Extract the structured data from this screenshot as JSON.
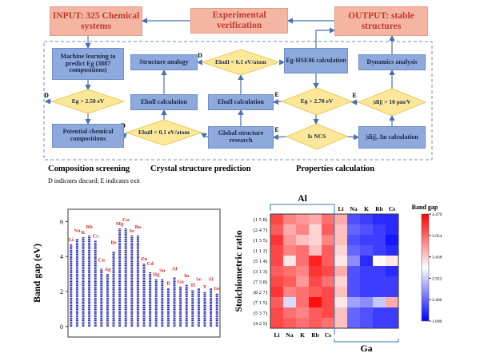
{
  "flowchart": {
    "nodes": [
      {
        "label": "INPUT: 325 Chemical systems"
      },
      {
        "label": "Experimental verification"
      },
      {
        "label": "OUTPUT: stable structures"
      },
      {
        "label": "Machine learning to predict Eg (3887 compositions)"
      },
      {
        "label": "Eg > 2.50 eV"
      },
      {
        "label": "Potential chemical compositions"
      },
      {
        "label": "Structure analogy"
      },
      {
        "label": "Ehull calculation"
      },
      {
        "label": "Ehull < 0.1 eV/atom"
      },
      {
        "label": "Ehull < 0.1 eV/atom"
      },
      {
        "label": "Ehull calculation"
      },
      {
        "label": "Global structure research"
      },
      {
        "label": "Eg-HSE06 calculation"
      },
      {
        "label": "Eg > 2.70 eV"
      },
      {
        "label": "Is NCS"
      },
      {
        "label": "Dynamics analysis"
      },
      {
        "label": "|dij| > 10 pm/V"
      },
      {
        "label": "|dij|, Δn calculation"
      }
    ],
    "edge_labels": [
      "D",
      "D",
      "D",
      "E",
      "E",
      "E"
    ],
    "sections": [
      "Composition screening",
      "Crystal structure prediction",
      "Properties calculation"
    ],
    "footnote": "D indicates discard; E indicates exit"
  },
  "chart_data": [
    {
      "type": "strip",
      "ylabel": "Band gap (eV)",
      "categories": [
        "Li",
        "Na",
        "K",
        "Rb",
        "Cs",
        "Cu",
        "Ag",
        "Be",
        "Mg",
        "Ca",
        "Sr",
        "Ba",
        "Zn",
        "Cd",
        "Hg",
        "Sn",
        "B",
        "Al",
        "Ga",
        "In",
        "Tl",
        "Se",
        "Y",
        "Si",
        "Ge"
      ],
      "values": [
        4.7,
        5.0,
        5.1,
        5.2,
        4.9,
        3.3,
        3.0,
        4.3,
        5.6,
        5.6,
        5.2,
        5.2,
        3.6,
        3.1,
        2.7,
        2.7,
        2.2,
        2.8,
        2.3,
        2.4,
        2.1,
        2.2,
        2.0,
        2.2,
        1.9
      ],
      "color": "#2a2fb5",
      "label_color": "#d62728",
      "ylim": [
        -0.6,
        6.7
      ],
      "yticks": [
        0,
        2,
        4,
        6
      ]
    },
    {
      "type": "heatmap",
      "ylabel": "Stoichiometric ratio",
      "colorbar_label": "Band gap",
      "group_labels": [
        "Al",
        "Ga"
      ],
      "columns": [
        "Li",
        "Na",
        "K",
        "Rb",
        "Cs",
        "Li",
        "Na",
        "K",
        "Rb",
        "Cs"
      ],
      "rows": [
        "(1 5 8)",
        "(2 4 7)",
        "(1 3 5)",
        "(1 1 2)",
        "(5 1 4)",
        "(3 1 3)",
        "(7 3 8)",
        "(8 2 7)",
        "(7 1 5)",
        "(5 3 7)",
        "(4 2 5)"
      ],
      "values": [
        [
          4.1,
          3.8,
          3.7,
          3.6,
          3.9,
          3.6,
          2.3,
          2.2,
          2.1,
          2.1
        ],
        [
          4.0,
          3.6,
          3.8,
          3.4,
          4.0,
          3.5,
          2.4,
          2.3,
          2.2,
          2.1
        ],
        [
          4.2,
          3.7,
          3.5,
          3.4,
          3.8,
          3.5,
          2.3,
          2.2,
          2.2,
          2.0
        ],
        [
          4.1,
          3.8,
          3.9,
          3.5,
          4.0,
          3.4,
          2.4,
          2.3,
          2.2,
          2.1
        ],
        [
          4.1,
          3.3,
          3.9,
          4.3,
          4.0,
          3.3,
          2.6,
          2.1,
          3.2,
          3.3
        ],
        [
          4.0,
          3.9,
          3.8,
          4.2,
          4.1,
          3.6,
          2.3,
          2.2,
          2.2,
          2.1
        ],
        [
          4.1,
          4.0,
          3.7,
          4.1,
          3.9,
          3.4,
          2.3,
          2.2,
          2.2,
          2.2
        ],
        [
          4.2,
          3.8,
          3.9,
          4.0,
          4.1,
          3.5,
          2.3,
          2.2,
          2.2,
          2.2
        ],
        [
          4.0,
          3.0,
          3.9,
          4.4,
          4.1,
          3.3,
          2.7,
          2.6,
          2.9,
          3.6
        ],
        [
          4.1,
          3.9,
          3.8,
          4.0,
          4.1,
          3.5,
          2.4,
          2.3,
          2.2,
          2.2
        ],
        [
          4.1,
          4.0,
          3.9,
          4.0,
          3.9,
          3.5,
          2.4,
          2.3,
          2.2,
          2.2
        ]
      ],
      "colormap": [
        "#0000ff",
        "#ffffff",
        "#ff0000"
      ],
      "clim": [
        1.89,
        4.47
      ],
      "cticks": [
        {
          "value": 4.47,
          "label": "4.470"
        },
        3.954,
        3.438,
        2.922,
        2.406,
        {
          "value": 1.89,
          "label": "1.890"
        }
      ]
    }
  ]
}
